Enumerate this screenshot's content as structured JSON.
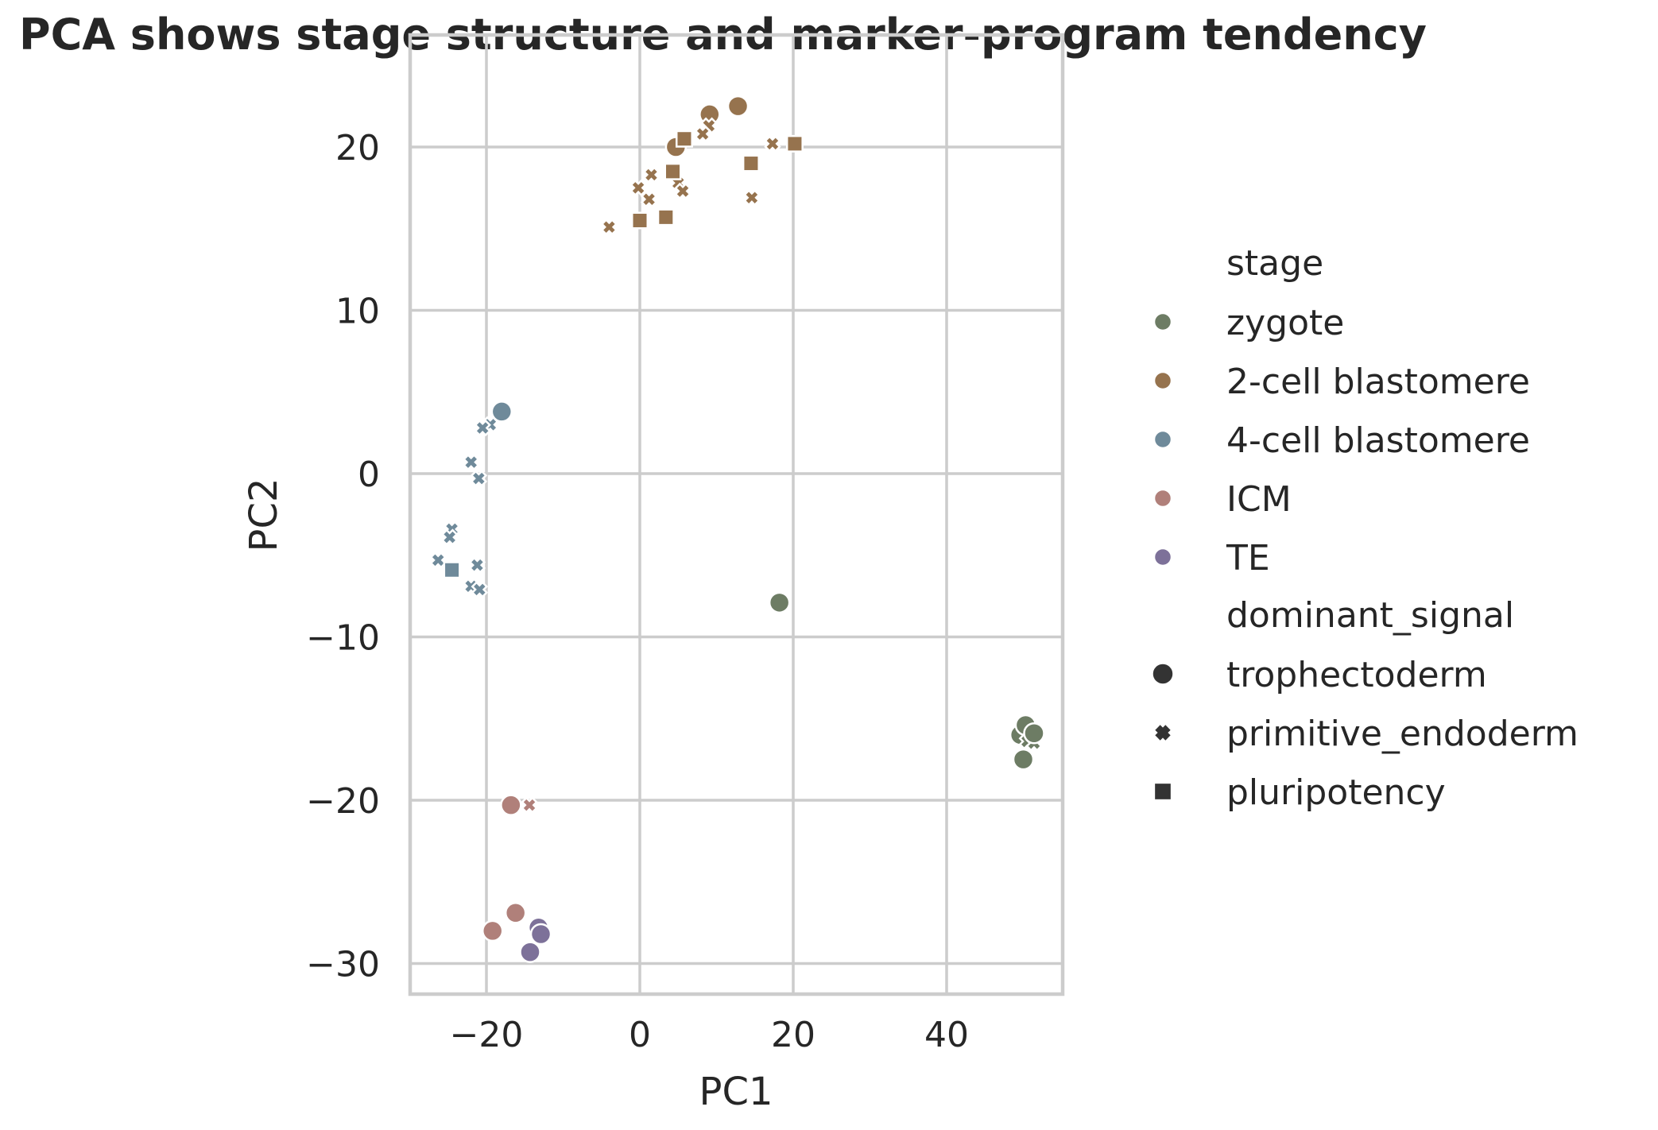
{
  "chart_data": {
    "type": "scatter",
    "title": "PCA shows stage structure and marker-program tendency",
    "xlabel": "PC1",
    "ylabel": "PC2",
    "xlim": [
      -30,
      55
    ],
    "ylim": [
      -32,
      24
    ],
    "xticks": [
      -20,
      0,
      20,
      40
    ],
    "yticks": [
      -30,
      -20,
      -10,
      0,
      10,
      20
    ],
    "xtick_labels": [
      "−20",
      "0",
      "20",
      "40"
    ],
    "ytick_labels": [
      "−30",
      "−20",
      "−10",
      "0",
      "10",
      "20"
    ],
    "grid": true,
    "legend_position": "right",
    "hue_legend_title": "stage",
    "style_legend_title": "dominant_signal",
    "hue_series": [
      {
        "name": "zygote",
        "color": "#6d7c64"
      },
      {
        "name": "2-cell blastomere",
        "color": "#96734e"
      },
      {
        "name": "4-cell blastomere",
        "color": "#6f8a9a"
      },
      {
        "name": "ICM",
        "color": "#b0807a"
      },
      {
        "name": "TE",
        "color": "#7d7199"
      }
    ],
    "style_series": [
      {
        "name": "trophectoderm",
        "marker": "circle"
      },
      {
        "name": "primitive_endoderm",
        "marker": "x"
      },
      {
        "name": "pluripotency",
        "marker": "square"
      }
    ],
    "points": [
      {
        "stage": "zygote",
        "signal": "trophectoderm",
        "x": 18.2,
        "y": -7.9
      },
      {
        "stage": "zygote",
        "signal": "trophectoderm",
        "x": 49.6,
        "y": -16.0
      },
      {
        "stage": "zygote",
        "signal": "trophectoderm",
        "x": 50.3,
        "y": -15.4
      },
      {
        "stage": "zygote",
        "signal": "trophectoderm",
        "x": 50.0,
        "y": -17.5
      },
      {
        "stage": "zygote",
        "signal": "primitive_endoderm",
        "x": 50.5,
        "y": -16.4
      },
      {
        "stage": "zygote",
        "signal": "primitive_endoderm",
        "x": 51.4,
        "y": -16.5
      },
      {
        "stage": "zygote",
        "signal": "trophectoderm",
        "x": 51.4,
        "y": -15.9
      },
      {
        "stage": "2-cell blastomere",
        "signal": "trophectoderm",
        "x": 12.8,
        "y": 22.5
      },
      {
        "stage": "2-cell blastomere",
        "signal": "trophectoderm",
        "x": 9.1,
        "y": 22.0
      },
      {
        "stage": "2-cell blastomere",
        "signal": "trophectoderm",
        "x": 4.7,
        "y": 20.0
      },
      {
        "stage": "2-cell blastomere",
        "signal": "primitive_endoderm",
        "x": 9.0,
        "y": 21.3
      },
      {
        "stage": "2-cell blastomere",
        "signal": "primitive_endoderm",
        "x": 8.2,
        "y": 20.8
      },
      {
        "stage": "2-cell blastomere",
        "signal": "primitive_endoderm",
        "x": 17.3,
        "y": 20.2
      },
      {
        "stage": "2-cell blastomere",
        "signal": "primitive_endoderm",
        "x": 1.5,
        "y": 18.3
      },
      {
        "stage": "2-cell blastomere",
        "signal": "primitive_endoderm",
        "x": -0.2,
        "y": 17.5
      },
      {
        "stage": "2-cell blastomere",
        "signal": "primitive_endoderm",
        "x": 1.2,
        "y": 16.8
      },
      {
        "stage": "2-cell blastomere",
        "signal": "primitive_endoderm",
        "x": 5.0,
        "y": 17.8
      },
      {
        "stage": "2-cell blastomere",
        "signal": "primitive_endoderm",
        "x": 5.6,
        "y": 17.3
      },
      {
        "stage": "2-cell blastomere",
        "signal": "primitive_endoderm",
        "x": 14.6,
        "y": 16.9
      },
      {
        "stage": "2-cell blastomere",
        "signal": "primitive_endoderm",
        "x": -4.0,
        "y": 15.1
      },
      {
        "stage": "2-cell blastomere",
        "signal": "pluripotency",
        "x": 5.8,
        "y": 20.5
      },
      {
        "stage": "2-cell blastomere",
        "signal": "pluripotency",
        "x": 20.2,
        "y": 20.2
      },
      {
        "stage": "2-cell blastomere",
        "signal": "pluripotency",
        "x": 4.3,
        "y": 18.5
      },
      {
        "stage": "2-cell blastomere",
        "signal": "pluripotency",
        "x": 14.5,
        "y": 19.0
      },
      {
        "stage": "2-cell blastomere",
        "signal": "pluripotency",
        "x": 0.0,
        "y": 15.5
      },
      {
        "stage": "2-cell blastomere",
        "signal": "pluripotency",
        "x": 3.4,
        "y": 15.7
      },
      {
        "stage": "4-cell blastomere",
        "signal": "trophectoderm",
        "x": -18.0,
        "y": 3.8
      },
      {
        "stage": "4-cell blastomere",
        "signal": "primitive_endoderm",
        "x": -19.5,
        "y": 3.0
      },
      {
        "stage": "4-cell blastomere",
        "signal": "primitive_endoderm",
        "x": -20.5,
        "y": 2.8
      },
      {
        "stage": "4-cell blastomere",
        "signal": "primitive_endoderm",
        "x": -22.0,
        "y": 0.7
      },
      {
        "stage": "4-cell blastomere",
        "signal": "primitive_endoderm",
        "x": -21.0,
        "y": -0.3
      },
      {
        "stage": "4-cell blastomere",
        "signal": "primitive_endoderm",
        "x": -24.5,
        "y": -3.4
      },
      {
        "stage": "4-cell blastomere",
        "signal": "primitive_endoderm",
        "x": -24.8,
        "y": -3.9
      },
      {
        "stage": "4-cell blastomere",
        "signal": "primitive_endoderm",
        "x": -26.3,
        "y": -5.3
      },
      {
        "stage": "4-cell blastomere",
        "signal": "primitive_endoderm",
        "x": -21.2,
        "y": -5.6
      },
      {
        "stage": "4-cell blastomere",
        "signal": "primitive_endoderm",
        "x": -22.0,
        "y": -6.9
      },
      {
        "stage": "4-cell blastomere",
        "signal": "primitive_endoderm",
        "x": -20.9,
        "y": -7.1
      },
      {
        "stage": "4-cell blastomere",
        "signal": "pluripotency",
        "x": -24.5,
        "y": -5.9
      },
      {
        "stage": "ICM",
        "signal": "trophectoderm",
        "x": -16.8,
        "y": -20.3
      },
      {
        "stage": "ICM",
        "signal": "primitive_endoderm",
        "x": -14.4,
        "y": -20.3
      },
      {
        "stage": "ICM",
        "signal": "trophectoderm",
        "x": -16.2,
        "y": -26.9
      },
      {
        "stage": "ICM",
        "signal": "trophectoderm",
        "x": -19.2,
        "y": -28.0
      },
      {
        "stage": "TE",
        "signal": "trophectoderm",
        "x": -13.2,
        "y": -27.8
      },
      {
        "stage": "TE",
        "signal": "trophectoderm",
        "x": -12.9,
        "y": -28.2
      },
      {
        "stage": "TE",
        "signal": "trophectoderm",
        "x": -14.3,
        "y": -29.3
      }
    ]
  }
}
